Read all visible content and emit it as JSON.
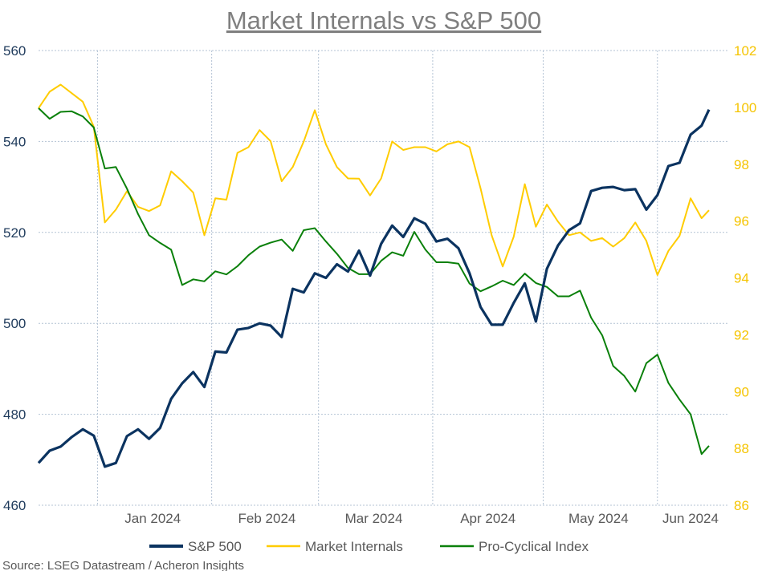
{
  "chart_data": {
    "type": "line",
    "title": "Market Internals vs S&P 500",
    "source": "Source: LSEG Datastream / Acheron Insights",
    "x_range": [
      "2023-12-16",
      "2024-06-15"
    ],
    "x_ticks": [
      "Jan 2024",
      "Feb 2024",
      "Mar 2024",
      "Apr 2024",
      "May 2024",
      "Jun 2024"
    ],
    "x_tick_months": [
      "2024-01",
      "2024-02",
      "2024-03",
      "2024-04",
      "2024-05",
      "2024-06"
    ],
    "y_left": {
      "range": [
        460,
        560
      ],
      "ticks": [
        "460",
        "480",
        "500",
        "520",
        "540",
        "560"
      ]
    },
    "y_right": {
      "range": [
        86,
        102
      ],
      "ticks": [
        "86",
        "88",
        "90",
        "92",
        "94",
        "96",
        "98",
        "100",
        "102"
      ]
    },
    "grid": true,
    "legend_placement": "bottom",
    "x": [
      "2023-12-16",
      "2023-12-19",
      "2023-12-22",
      "2023-12-25",
      "2023-12-28",
      "2023-12-31",
      "2024-01-03",
      "2024-01-06",
      "2024-01-09",
      "2024-01-12",
      "2024-01-15",
      "2024-01-18",
      "2024-01-21",
      "2024-01-24",
      "2024-01-27",
      "2024-01-30",
      "2024-02-02",
      "2024-02-05",
      "2024-02-08",
      "2024-02-11",
      "2024-02-14",
      "2024-02-17",
      "2024-02-20",
      "2024-02-23",
      "2024-02-26",
      "2024-02-29",
      "2024-03-03",
      "2024-03-06",
      "2024-03-09",
      "2024-03-12",
      "2024-03-15",
      "2024-03-18",
      "2024-03-21",
      "2024-03-24",
      "2024-03-27",
      "2024-03-30",
      "2024-04-02",
      "2024-04-05",
      "2024-04-08",
      "2024-04-11",
      "2024-04-14",
      "2024-04-17",
      "2024-04-20",
      "2024-04-23",
      "2024-04-26",
      "2024-04-29",
      "2024-05-02",
      "2024-05-05",
      "2024-05-08",
      "2024-05-11",
      "2024-05-14",
      "2024-05-17",
      "2024-05-20",
      "2024-05-23",
      "2024-05-26",
      "2024-05-29",
      "2024-06-01",
      "2024-06-04",
      "2024-06-07",
      "2024-06-10",
      "2024-06-13",
      "2024-06-15"
    ],
    "series": [
      {
        "name": "S&P 500",
        "axis": "left",
        "color": "#0b3360",
        "values": [
          469.3,
          472,
          472.9,
          475,
          476.7,
          475.3,
          468.5,
          469.3,
          475.2,
          476.7,
          474.6,
          477,
          483.4,
          486.8,
          489.3,
          486,
          493.8,
          493.6,
          498.6,
          499,
          500,
          499.5,
          497,
          507.6,
          506.8,
          511,
          510,
          513,
          511.4,
          516,
          510.5,
          517.5,
          521.5,
          519,
          523.1,
          521.9,
          518,
          518.6,
          516.5,
          511,
          503.6,
          499.7,
          499.7,
          504.5,
          508.8,
          500.4,
          512,
          517.1,
          520.5,
          522,
          529.1,
          529.8,
          530,
          529.3,
          529.5,
          525,
          528.2,
          534.6,
          535.3,
          541.5,
          543.5,
          547
        ]
      },
      {
        "name": "Market Internals",
        "axis": "right",
        "color": "#ffcc00",
        "values": [
          99.97,
          100.55,
          100.8,
          100.5,
          100.2,
          99.32,
          95.95,
          96.4,
          97.05,
          96.5,
          96.35,
          96.55,
          97.75,
          97.4,
          97.0,
          95.5,
          96.8,
          96.75,
          98.4,
          98.6,
          99.2,
          98.81,
          97.4,
          97.9,
          98.8,
          99.9,
          98.7,
          97.9,
          97.5,
          97.49,
          96.9,
          97.5,
          98.8,
          98.5,
          98.6,
          98.6,
          98.45,
          98.7,
          98.8,
          98.6,
          97.15,
          95.5,
          94.4,
          95.45,
          97.3,
          95.8,
          96.58,
          95.98,
          95.5,
          95.6,
          95.3,
          95.4,
          95.1,
          95.4,
          95.95,
          95.3,
          94.1,
          94.95,
          95.48,
          96.8,
          96.1,
          96.38
        ]
      },
      {
        "name": "Pro-Cyclical Index",
        "axis": "right",
        "color": "#0a800a",
        "values": [
          99.97,
          99.6,
          99.84,
          99.86,
          99.68,
          99.29,
          97.85,
          97.9,
          97.14,
          96.25,
          95.5,
          95.23,
          94.99,
          93.75,
          93.95,
          93.88,
          94.23,
          94.12,
          94.41,
          94.8,
          95.1,
          95.24,
          95.35,
          94.95,
          95.68,
          95.75,
          95.28,
          94.85,
          94.35,
          94.13,
          94.13,
          94.6,
          94.9,
          94.78,
          95.62,
          95.0,
          94.55,
          94.55,
          94.5,
          93.8,
          93.53,
          93.7,
          93.9,
          93.75,
          94.15,
          93.82,
          93.68,
          93.35,
          93.35,
          93.55,
          92.6,
          91.98,
          90.9,
          90.55,
          90.0,
          91.0,
          91.3,
          90.3,
          89.72,
          89.2,
          87.8,
          88.09
        ]
      }
    ],
    "colors": {
      "left_axis": "#1f3b5c",
      "right_axis": "#f5c400",
      "title": "#7f7f7f",
      "grid": "#b4c3d4"
    }
  }
}
